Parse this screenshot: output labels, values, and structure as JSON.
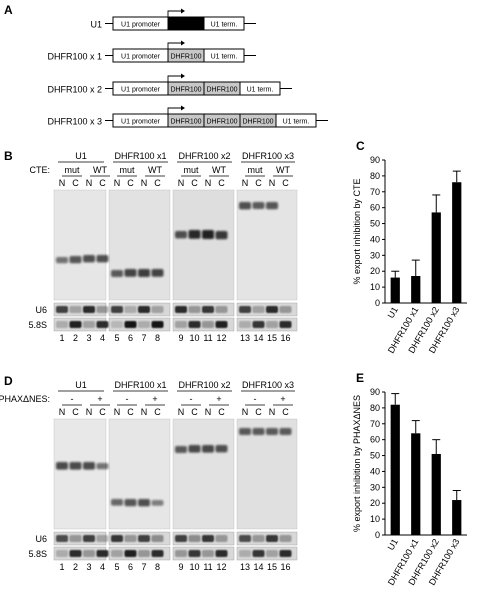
{
  "panel_labels": [
    "A",
    "B",
    "C",
    "D",
    "E"
  ],
  "constructs": [
    {
      "name": "U1",
      "blocks": [
        "U1 promoter",
        "U1",
        "U1 term."
      ]
    },
    {
      "name": "DHFR100 x 1",
      "blocks": [
        "U1 promoter",
        "DHFR100",
        "U1 term."
      ]
    },
    {
      "name": "DHFR100 x 2",
      "blocks": [
        "U1 promoter",
        "DHFR100",
        "DHFR100",
        "U1 term."
      ]
    },
    {
      "name": "DHFR100 x 3",
      "blocks": [
        "U1 promoter",
        "DHFR100",
        "DHFR100",
        "DHFR100",
        "U1 term."
      ]
    }
  ],
  "blot_groups": [
    "U1",
    "DHFR100 x1",
    "DHFR100 x2",
    "DHFR100 x3"
  ],
  "cte_label": "CTE:",
  "cte_conditions": [
    "mut",
    "WT"
  ],
  "phax_label": "PHAXΔNES:",
  "phax_conditions": [
    "-",
    "+"
  ],
  "fractions": [
    "N",
    "C"
  ],
  "loading_controls": [
    "U6",
    "5.8S"
  ],
  "lane_numbers": [
    "1",
    "2",
    "3",
    "4",
    "5",
    "6",
    "7",
    "8",
    "9",
    "10",
    "11",
    "12",
    "13",
    "14",
    "15",
    "16"
  ],
  "chart_data": [
    {
      "type": "bar",
      "panel": "C",
      "categories": [
        "U1",
        "DHFR100 x1",
        "DHFR100 x2",
        "DHFR100 x3"
      ],
      "values": [
        16,
        17,
        57,
        76
      ],
      "errors": [
        4,
        10,
        11,
        7
      ],
      "ylabel": "% export inhibition by CTE",
      "ylim": [
        0,
        90
      ],
      "yticks": [
        "0",
        "10",
        "20",
        "30",
        "40",
        "50",
        "60",
        "70",
        "80",
        "90"
      ],
      "color": "#000000"
    },
    {
      "type": "bar",
      "panel": "E",
      "categories": [
        "U1",
        "DHFR100 x1",
        "DHFR100 x2",
        "DHFR100 x3"
      ],
      "values": [
        82,
        64,
        51,
        22
      ],
      "errors": [
        7,
        8,
        9,
        6
      ],
      "ylabel": "% export inhibition by PHAXΔNES",
      "ylim": [
        0,
        90
      ],
      "yticks": [
        "0",
        "10",
        "20",
        "30",
        "40",
        "50",
        "60",
        "70",
        "80",
        "90"
      ],
      "color": "#000000"
    }
  ]
}
